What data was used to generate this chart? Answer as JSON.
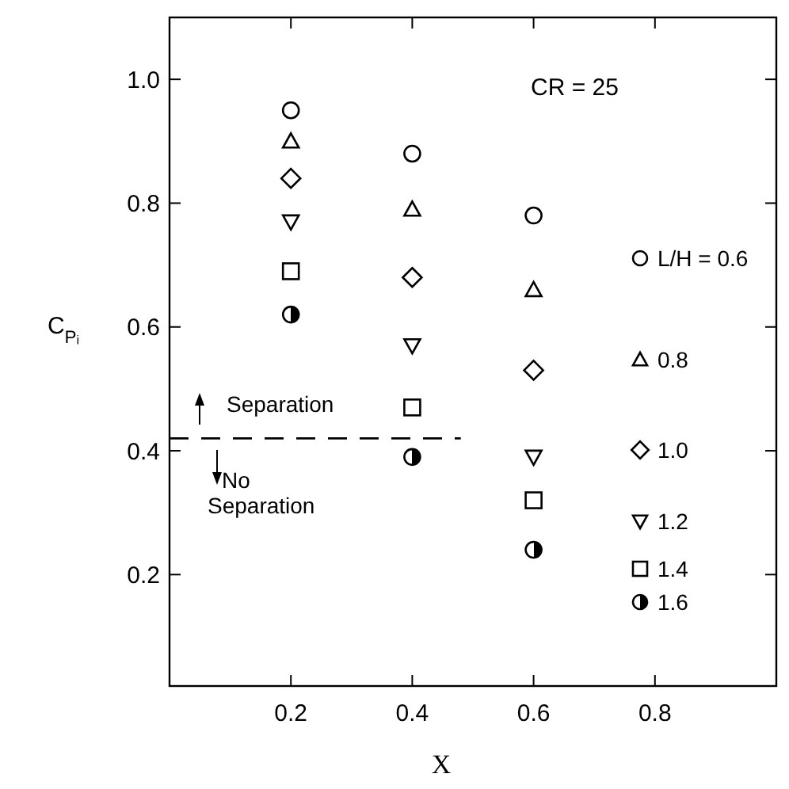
{
  "chart_data": {
    "type": "scatter",
    "xlabel": "X",
    "ylabel": "C$_{Pᵢ}$",
    "annotations": [
      "CR = 25",
      "Separation",
      "No Separation"
    ],
    "xlim": [
      0,
      1.0
    ],
    "xticks": [
      0.2,
      0.4,
      0.6,
      0.8
    ],
    "ylim": [
      0.02,
      1.1
    ],
    "yticks": [
      0.2,
      0.4,
      0.6,
      0.8,
      {
        "value": 1,
        "label": "1.0"
      }
    ],
    "x": [
      0.2,
      0.4,
      0.6
    ],
    "legend": "right",
    "grid": false,
    "ref_lines": [
      {
        "axis": "y",
        "value": 0.42,
        "line_style": "dashed",
        "color": "#000000"
      }
    ],
    "series": [
      {
        "name": "L/H = 0.6",
        "marker": "circle",
        "color": "#000000",
        "values": [
          0.95,
          0.88,
          0.78
        ]
      },
      {
        "name": "0.8",
        "marker": "triangle",
        "color": "#000000",
        "values": [
          0.9,
          0.79,
          0.66
        ]
      },
      {
        "name": "1.0",
        "marker": "diamond",
        "color": "#000000",
        "values": [
          0.84,
          0.68,
          0.53
        ]
      },
      {
        "name": "1.2",
        "marker": "triangle-down",
        "color": "#000000",
        "values": [
          0.77,
          0.57,
          0.39
        ]
      },
      {
        "name": "1.4",
        "marker": "square",
        "color": "#000000",
        "values": [
          0.69,
          0.47,
          0.32
        ]
      },
      {
        "name": "1.6",
        "marker": "half-circle",
        "color": "#000000",
        "values": [
          0.62,
          0.39,
          0.24
        ]
      }
    ]
  }
}
